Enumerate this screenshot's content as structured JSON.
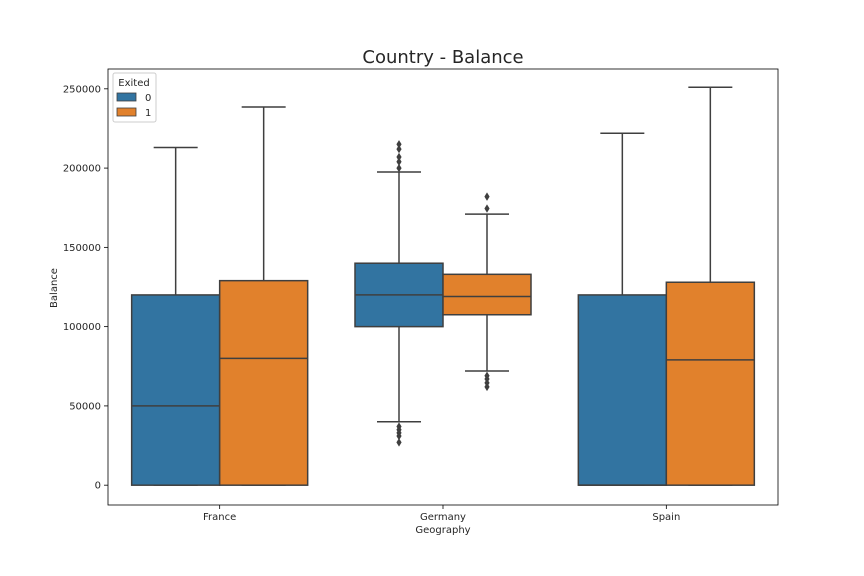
{
  "chart_data": {
    "type": "box",
    "title": "Country - Balance",
    "xlabel": "Geography",
    "ylabel": "Balance",
    "categories": [
      "France",
      "Germany",
      "Spain"
    ],
    "ylim": [
      -12500,
      262500
    ],
    "yticks": [
      0,
      50000,
      100000,
      150000,
      200000,
      250000
    ],
    "ytick_labels": [
      "0",
      "50000",
      "100000",
      "150000",
      "200000",
      "250000"
    ],
    "legend": {
      "title": "Exited",
      "placement": "top-left",
      "entries": [
        "0",
        "1"
      ]
    },
    "colors": {
      "0": "#3274a1",
      "1": "#e1812c",
      "line": "#3f3f3f"
    },
    "series": [
      {
        "name": "0",
        "boxes": [
          {
            "category": "France",
            "whisker_low": 0,
            "q1": 0,
            "median": 50000,
            "q3": 120000,
            "whisker_high": 213000,
            "fliers": []
          },
          {
            "category": "Germany",
            "whisker_low": 40000,
            "q1": 100000,
            "median": 120000,
            "q3": 140000,
            "whisker_high": 197500,
            "fliers": [
              27000,
              31000,
              33000,
              35000,
              37000,
              200000,
              204000,
              207000,
              212000,
              215000
            ]
          },
          {
            "category": "Spain",
            "whisker_low": 0,
            "q1": 0,
            "median": 0,
            "q3": 120000,
            "whisker_high": 222000,
            "fliers": []
          }
        ]
      },
      {
        "name": "1",
        "boxes": [
          {
            "category": "France",
            "whisker_low": 0,
            "q1": 0,
            "median": 80000,
            "q3": 129000,
            "whisker_high": 238500,
            "fliers": []
          },
          {
            "category": "Germany",
            "whisker_low": 72000,
            "q1": 107500,
            "median": 119000,
            "q3": 133000,
            "whisker_high": 171000,
            "fliers": [
              62000,
              64500,
              67000,
              69000,
              174500,
              182000
            ]
          },
          {
            "category": "Spain",
            "whisker_low": 0,
            "q1": 0,
            "median": 79000,
            "q3": 128000,
            "whisker_high": 251000,
            "fliers": []
          }
        ]
      }
    ]
  }
}
